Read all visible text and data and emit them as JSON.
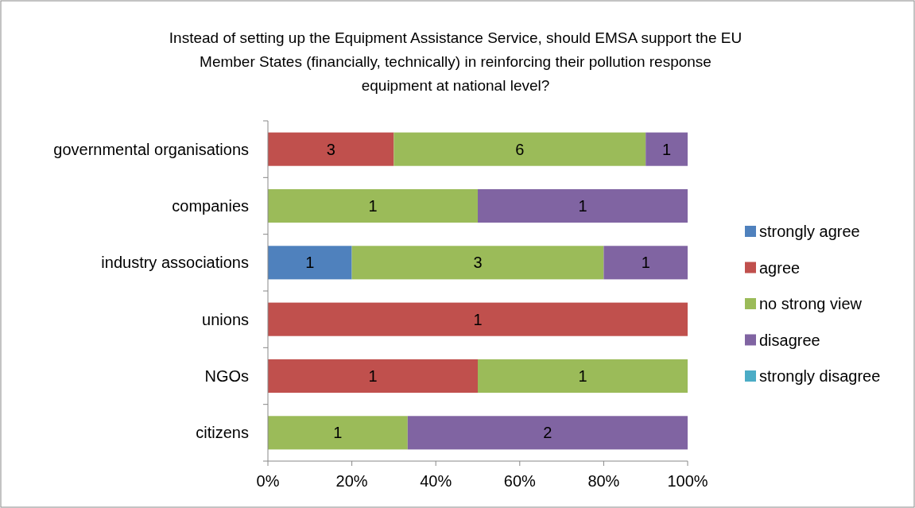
{
  "chart_data": {
    "type": "bar",
    "orientation": "horizontal",
    "stacked": true,
    "title": "Instead of setting up the Equipment Assistance Service, should EMSA support the EU Member States (financially, technically) in reinforcing their pollution response equipment at national level?",
    "categories": [
      "governmental organisations",
      "companies",
      "industry associations",
      "unions",
      "NGOs",
      "citizens"
    ],
    "series": [
      {
        "name": "strongly agree",
        "color": "#4f81bd",
        "values": [
          null,
          null,
          20,
          null,
          null,
          null
        ]
      },
      {
        "name": "agree",
        "color": "#c0504d",
        "values": [
          30,
          null,
          null,
          100,
          50,
          null
        ]
      },
      {
        "name": "no strong view",
        "color": "#9bbb59",
        "values": [
          60,
          50,
          60,
          null,
          50,
          33.3
        ]
      },
      {
        "name": "disagree",
        "color": "#8064a2",
        "values": [
          10,
          50,
          20,
          null,
          null,
          66.7
        ]
      },
      {
        "name": "strongly disagree",
        "color": "#4bacc6",
        "values": [
          null,
          null,
          null,
          null,
          null,
          null
        ]
      }
    ],
    "annotations": [
      "3",
      "6",
      "1",
      "1",
      "1",
      "1",
      "3",
      "1",
      "1",
      "1",
      "1",
      "1",
      "2"
    ],
    "xlim": [
      0,
      100
    ],
    "xticks": [
      {
        "value": 0,
        "label": "0%"
      },
      {
        "value": 20,
        "label": "20%"
      },
      {
        "value": 40,
        "label": "40%"
      },
      {
        "value": 60,
        "label": "60%"
      },
      {
        "value": 80,
        "label": "80%"
      },
      {
        "value": 100,
        "label": "100%"
      }
    ],
    "legend": "right",
    "grid": false
  }
}
